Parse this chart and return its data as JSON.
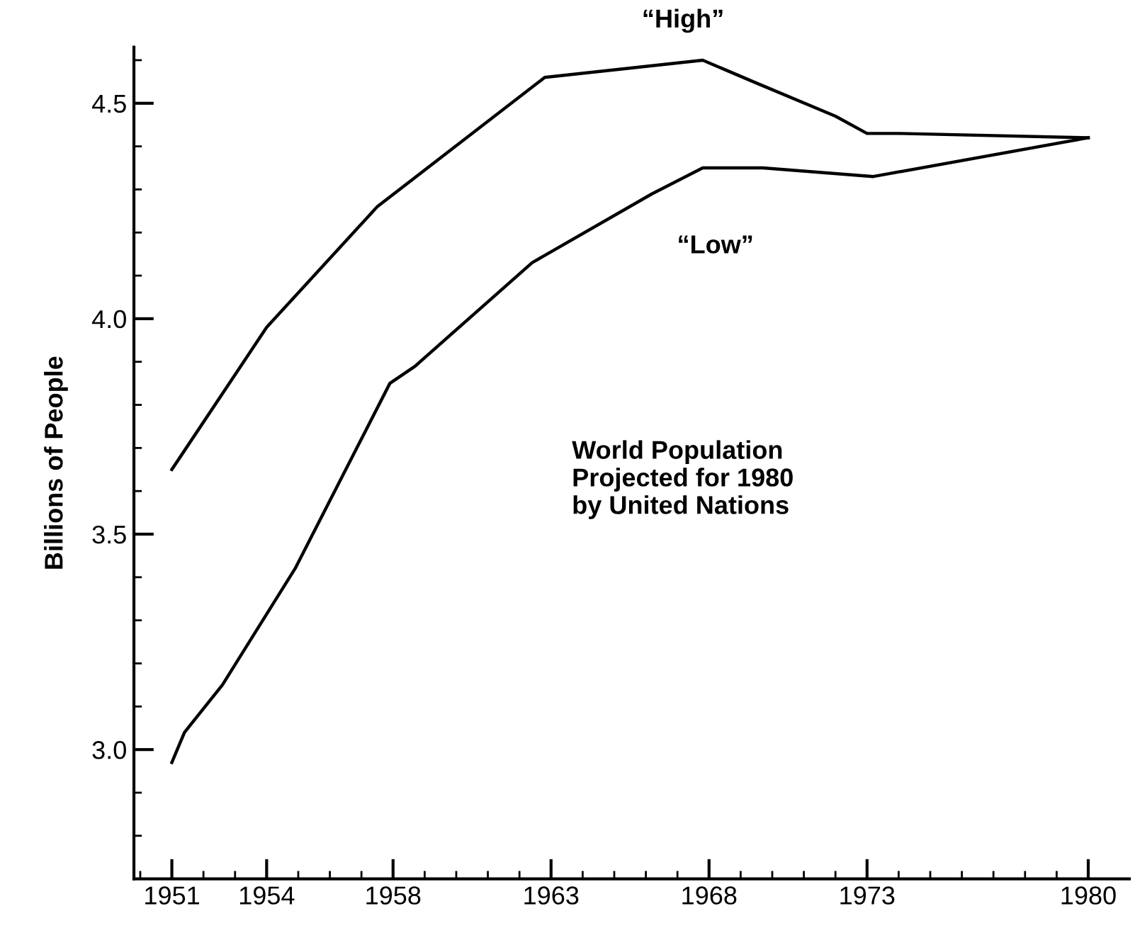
{
  "chart_data": {
    "type": "line",
    "ylabel": "Billions of People",
    "annotations": [
      {
        "text": "“High”",
        "x": 1967.8,
        "y": 4.6
      },
      {
        "text": "“Low”",
        "x": 1968.2,
        "y": 4.35
      },
      "World Population\nProjected for 1980\nby United Nations"
    ],
    "series": [
      {
        "color": "#000000",
        "x": [
          1951,
          1954,
          1957.5,
          1962.8,
          1967.8,
          1969.4,
          1972,
          1973,
          1974,
          1980
        ],
        "values": [
          3.65,
          3.98,
          4.26,
          4.56,
          4.6,
          4.55,
          4.47,
          4.43,
          4.43,
          4.42
        ]
      },
      {
        "color": "#000000",
        "x": [
          1951,
          1951.4,
          1952.6,
          1954.9,
          1957.9,
          1958.7,
          1962.4,
          1966.2,
          1967.8,
          1969.7,
          1973.2,
          1980
        ],
        "values": [
          2.97,
          3.04,
          3.15,
          3.42,
          3.85,
          3.89,
          4.13,
          4.29,
          4.35,
          4.35,
          4.33,
          4.42
        ]
      }
    ],
    "xlim": [
      1949.8,
      1981.3
    ],
    "ylim": [
      2.7,
      4.63
    ],
    "xticks": [
      1951,
      1954,
      1958,
      1963,
      1968,
      1973,
      1980,
      {
        "value": 1950,
        "label": null
      },
      {
        "value": 1952,
        "label": null
      },
      {
        "value": 1953,
        "label": null
      },
      {
        "value": 1955,
        "label": null
      },
      {
        "value": 1956,
        "label": null
      },
      {
        "value": 1957,
        "label": null
      },
      {
        "value": 1959,
        "label": null
      },
      {
        "value": 1960,
        "label": null
      },
      {
        "value": 1961,
        "label": null
      },
      {
        "value": 1962,
        "label": null
      },
      {
        "value": 1964,
        "label": null
      },
      {
        "value": 1965,
        "label": null
      },
      {
        "value": 1966,
        "label": null
      },
      {
        "value": 1967,
        "label": null
      },
      {
        "value": 1969,
        "label": null
      },
      {
        "value": 1970,
        "label": null
      },
      {
        "value": 1971,
        "label": null
      },
      {
        "value": 1972,
        "label": null
      },
      {
        "value": 1974,
        "label": null
      },
      {
        "value": 1975,
        "label": null
      },
      {
        "value": 1976,
        "label": null
      },
      {
        "value": 1977,
        "label": null
      },
      {
        "value": 1978,
        "label": null
      },
      {
        "value": 1979,
        "label": null
      }
    ],
    "yticks": [
      {
        "value": 3.0,
        "label": "3.0"
      },
      {
        "value": 3.5,
        "label": "3.5"
      },
      {
        "value": 4.0,
        "label": "4.0"
      },
      {
        "value": 4.5,
        "label": "4.5"
      },
      {
        "value": 2.8,
        "label": null
      },
      {
        "value": 2.9,
        "label": null
      },
      {
        "value": 3.1,
        "label": null
      },
      {
        "value": 3.2,
        "label": null
      },
      {
        "value": 3.3,
        "label": null
      },
      {
        "value": 3.4,
        "label": null
      },
      {
        "value": 3.6,
        "label": null
      },
      {
        "value": 3.7,
        "label": null
      },
      {
        "value": 3.8,
        "label": null
      },
      {
        "value": 3.9,
        "label": null
      },
      {
        "value": 4.1,
        "label": null
      },
      {
        "value": 4.2,
        "label": null
      },
      {
        "value": 4.3,
        "label": null
      },
      {
        "value": 4.4,
        "label": null
      },
      {
        "value": 4.6,
        "label": null
      }
    ],
    "grid": false,
    "legend": false,
    "marker": "none",
    "line_style": "solid"
  }
}
